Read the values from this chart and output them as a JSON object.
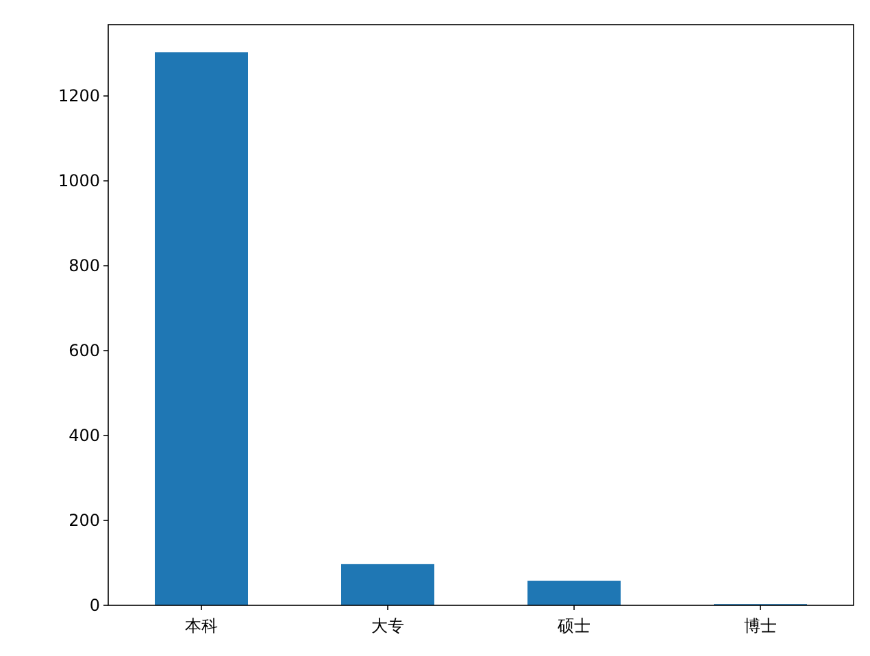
{
  "chart_data": {
    "type": "bar",
    "categories": [
      "本科",
      "大专",
      "硕士",
      "博士"
    ],
    "values": [
      1303,
      97,
      58,
      3
    ],
    "color": "#1f77b4",
    "ylim": [
      0,
      1368
    ],
    "yticks": [
      0,
      200,
      400,
      600,
      800,
      1000,
      1200
    ],
    "grid": false
  }
}
